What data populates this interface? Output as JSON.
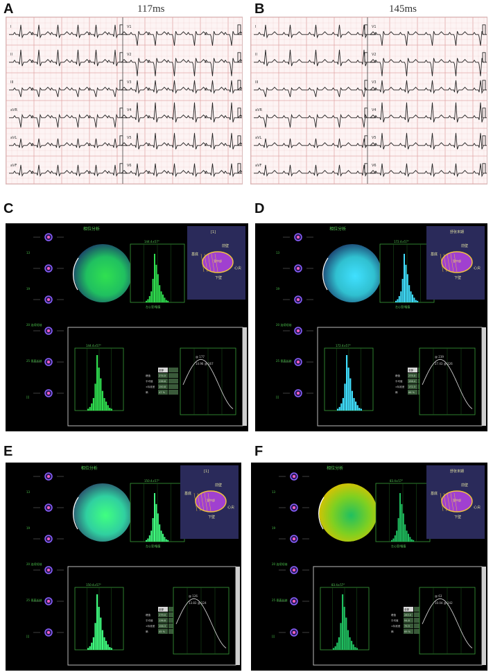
{
  "figure": {
    "panels": [
      {
        "letter": "A",
        "duration": "117ms"
      },
      {
        "letter": "B",
        "duration": "145ms"
      },
      {
        "letter": "C"
      },
      {
        "letter": "D"
      },
      {
        "letter": "E"
      },
      {
        "letter": "F"
      }
    ],
    "ecg_leads": [
      "I",
      "II",
      "III",
      "aVR",
      "aVL",
      "aVF",
      "V1",
      "V2",
      "V3",
      "V4",
      "V5",
      "V6"
    ],
    "phase_panels": [
      {
        "id": "C",
        "title": "相位分析",
        "view_label": "[1]",
        "hist_label": "144.4±57°",
        "wide_hist_label": "144.4±57°",
        "peak_label": "@ 177",
        "half_label": "14.96 @ 167",
        "stats": [
          "全部",
          "274.0",
          "138.8",
          "150.8",
          "47 %"
        ],
        "colors": [
          "#1a3a6a",
          "#20c060",
          "#30e050"
        ]
      },
      {
        "id": "D",
        "title": "相位分析",
        "view_label": "舒张末期",
        "hist_label": "172.4±57°",
        "wide_hist_label": "172.4±57°",
        "peak_label": "@ 239",
        "half_label": "27.43 @ 226",
        "stats": [
          "全部",
          "275.0",
          "156.4",
          "172.3",
          "68 %"
        ],
        "colors": [
          "#1a3a6a",
          "#30c0d0",
          "#40e0ff"
        ]
      },
      {
        "id": "E",
        "title": "相位分析",
        "view_label": "[1]",
        "hist_label": "150.4±57°",
        "wide_hist_label": "150.4±57°",
        "peak_label": "@ 126",
        "half_label": "13.83 @ 124",
        "stats": [
          "全部",
          "279.0",
          "136.8",
          "156.3",
          "45 %"
        ],
        "colors": [
          "#2a4a6a",
          "#30d0a0",
          "#40ff80"
        ]
      },
      {
        "id": "F",
        "title": "相位分析",
        "view_label": "舒张末期",
        "hist_label": "83.4±57°",
        "wide_hist_label": "83.4±57°",
        "peak_label": "@ 63",
        "half_label": "10.04 @ 242",
        "stats": [
          "全部",
          "283.0",
          "94.8",
          "79.9",
          "69 %"
        ],
        "colors": [
          "#e0c000",
          "#80d020",
          "#20c060"
        ]
      }
    ],
    "stat_labels": [
      "",
      "峰值",
      "平均值",
      "±标准差",
      "熵"
    ],
    "hist_axis_label": "左心室/幅值",
    "bullseye_text": [
      "前壁",
      "下壁",
      "基底",
      "心尖",
      "室中部"
    ],
    "left_column_labels": [
      "13",
      "19",
      "20 连续短轴",
      "25 垂直长轴",
      "|||"
    ]
  }
}
